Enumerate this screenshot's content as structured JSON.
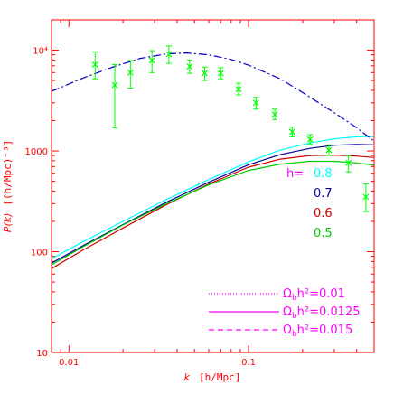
{
  "chart_data": {
    "type": "line",
    "xscale": "log",
    "yscale": "log",
    "xlim": [
      0.008,
      0.5
    ],
    "ylim": [
      10,
      20000
    ],
    "xlabel": "k [h/Mpc]",
    "xlabel_var": "k",
    "xlabel_unit": "[h/Mpc]",
    "ylabel": "P(k) [(h/Mpc)⁻³]",
    "ylabel_var": "P(k)",
    "ylabel_unit": "[(h/Mpc)⁻³]",
    "x_ticks": [
      {
        "value": 0.01,
        "label": "0.01"
      },
      {
        "value": 0.1,
        "label": "0.1"
      }
    ],
    "y_ticks": [
      {
        "value": 10,
        "label": "10"
      },
      {
        "value": 100,
        "label": "100"
      },
      {
        "value": 1000,
        "label": "1000"
      },
      {
        "value": 10000,
        "label": "10⁴"
      }
    ],
    "colors": {
      "frame": "#ff0000",
      "axis_text": "#ff0000",
      "dashdot": "#0000cc",
      "h08": "#00ffff",
      "h07": "#000099",
      "h06": "#cc0000",
      "h05": "#00cc00",
      "data": "#00ff00",
      "legend": "#ff00ff"
    },
    "h_legend": {
      "title": "h=",
      "entries": [
        {
          "label": "0.8",
          "color": "#00ffff"
        },
        {
          "label": "0.7",
          "color": "#000099"
        },
        {
          "label": "0.6",
          "color": "#cc0000"
        },
        {
          "label": "0.5",
          "color": "#00cc00"
        }
      ]
    },
    "ob_legend": [
      {
        "prefix": "Ω",
        "sub": "b",
        "suffix": "h²=0.01",
        "style": "dotted"
      },
      {
        "prefix": "Ω",
        "sub": "b",
        "suffix": "h²=0.0125",
        "style": "solid"
      },
      {
        "prefix": "Ω",
        "sub": "b",
        "suffix": "h²=0.015",
        "style": "dashed"
      }
    ],
    "series": [
      {
        "color": "#00ffff",
        "style": "solid",
        "x": [
          0.008,
          0.012,
          0.02,
          0.035,
          0.06,
          0.1,
          0.15,
          0.22,
          0.3,
          0.4,
          0.5
        ],
        "y": [
          85,
          126,
          200,
          330,
          520,
          780,
          1020,
          1200,
          1320,
          1380,
          1390
        ]
      },
      {
        "color": "#000099",
        "style": "solid",
        "x": [
          0.008,
          0.012,
          0.02,
          0.035,
          0.06,
          0.1,
          0.15,
          0.22,
          0.3,
          0.4,
          0.5
        ],
        "y": [
          77,
          115,
          186,
          310,
          490,
          730,
          920,
          1060,
          1140,
          1160,
          1150
        ]
      },
      {
        "color": "#cc0000",
        "style": "solid",
        "x": [
          0.008,
          0.012,
          0.02,
          0.035,
          0.06,
          0.1,
          0.15,
          0.22,
          0.3,
          0.4,
          0.5
        ],
        "y": [
          68,
          104,
          172,
          294,
          470,
          690,
          830,
          900,
          910,
          890,
          860
        ]
      },
      {
        "color": "#00cc00",
        "style": "solid",
        "x": [
          0.008,
          0.012,
          0.02,
          0.035,
          0.06,
          0.1,
          0.15,
          0.22,
          0.3,
          0.4,
          0.5
        ],
        "y": [
          74,
          112,
          184,
          300,
          460,
          640,
          740,
          790,
          790,
          760,
          720
        ]
      },
      {
        "color": "#0000cc",
        "style": "dashdot",
        "x": [
          0.008,
          0.012,
          0.018,
          0.025,
          0.035,
          0.045,
          0.06,
          0.08,
          0.1,
          0.15,
          0.2,
          0.3,
          0.4,
          0.5
        ],
        "y": [
          3900,
          5300,
          6900,
          8300,
          9200,
          9400,
          9000,
          8100,
          7100,
          5200,
          3800,
          2400,
          1700,
          1250
        ]
      }
    ],
    "data_points": [
      {
        "x": 0.014,
        "y": 7200,
        "ylo": 5200,
        "yhi": 9600
      },
      {
        "x": 0.018,
        "y": 4500,
        "ylo": 1700,
        "yhi": 7200
      },
      {
        "x": 0.022,
        "y": 6000,
        "ylo": 4200,
        "yhi": 7900
      },
      {
        "x": 0.029,
        "y": 7900,
        "ylo": 6000,
        "yhi": 9900
      },
      {
        "x": 0.036,
        "y": 9100,
        "ylo": 7400,
        "yhi": 11000
      },
      {
        "x": 0.047,
        "y": 6900,
        "ylo": 5900,
        "yhi": 8000
      },
      {
        "x": 0.057,
        "y": 5900,
        "ylo": 5000,
        "yhi": 6800
      },
      {
        "x": 0.07,
        "y": 5900,
        "ylo": 5200,
        "yhi": 6700
      },
      {
        "x": 0.088,
        "y": 4100,
        "ylo": 3600,
        "yhi": 4700
      },
      {
        "x": 0.11,
        "y": 3000,
        "ylo": 2600,
        "yhi": 3400
      },
      {
        "x": 0.14,
        "y": 2300,
        "ylo": 2050,
        "yhi": 2600
      },
      {
        "x": 0.175,
        "y": 1550,
        "ylo": 1380,
        "yhi": 1730
      },
      {
        "x": 0.22,
        "y": 1300,
        "ylo": 1160,
        "yhi": 1450
      },
      {
        "x": 0.28,
        "y": 1020,
        "ylo": 900,
        "yhi": 1150
      },
      {
        "x": 0.36,
        "y": 760,
        "ylo": 620,
        "yhi": 900
      },
      {
        "x": 0.45,
        "y": 350,
        "ylo": 250,
        "yhi": 470
      }
    ]
  }
}
